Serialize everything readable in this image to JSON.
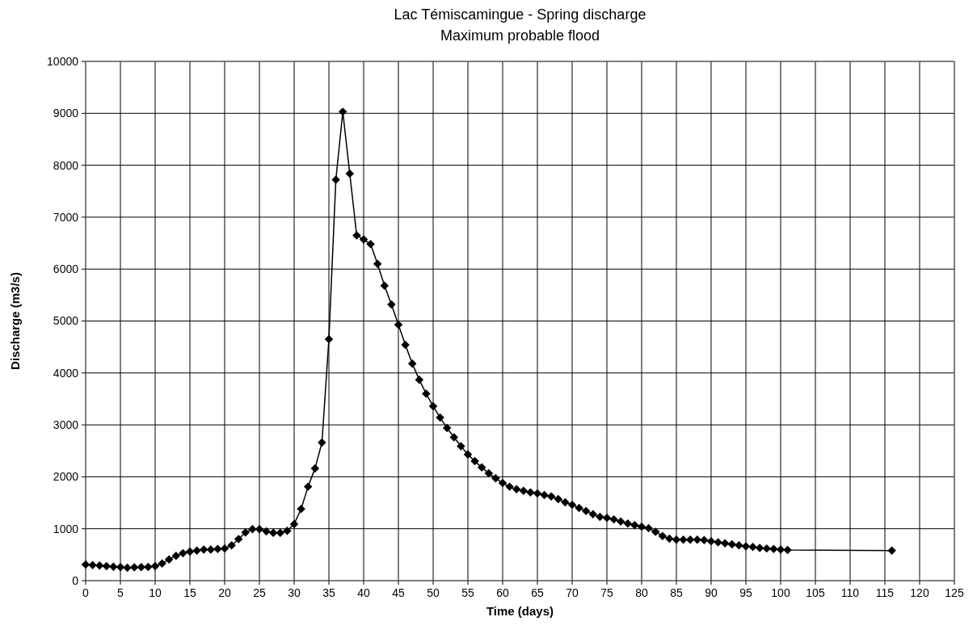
{
  "chart_data": {
    "type": "line",
    "title": "Lac Témiscamingue - Spring discharge",
    "subtitle": "Maximum probable flood",
    "xlabel": "Time (days)",
    "ylabel": "Discharge (m3/s)",
    "x": [
      0,
      1,
      2,
      3,
      4,
      5,
      6,
      7,
      8,
      9,
      10,
      11,
      12,
      13,
      14,
      15,
      16,
      17,
      18,
      19,
      20,
      21,
      22,
      23,
      24,
      25,
      26,
      27,
      28,
      29,
      30,
      31,
      32,
      33,
      34,
      35,
      36,
      37,
      38,
      39,
      40,
      41,
      42,
      43,
      44,
      45,
      46,
      47,
      48,
      49,
      50,
      51,
      52,
      53,
      54,
      55,
      56,
      57,
      58,
      59,
      60,
      61,
      62,
      63,
      64,
      65,
      66,
      67,
      68,
      69,
      70,
      71,
      72,
      73,
      74,
      75,
      76,
      77,
      78,
      79,
      80,
      81,
      82,
      83,
      84,
      85,
      86,
      87,
      88,
      89,
      90,
      91,
      92,
      93,
      94,
      95,
      96,
      97,
      98,
      99,
      100,
      101,
      116
    ],
    "series": [
      {
        "color": "#000000",
        "values": [
          310,
          300,
          290,
          280,
          270,
          260,
          250,
          255,
          260,
          265,
          280,
          330,
          410,
          480,
          530,
          560,
          580,
          600,
          600,
          610,
          620,
          680,
          800,
          930,
          990,
          990,
          950,
          920,
          920,
          960,
          1090,
          1380,
          1810,
          2160,
          2660,
          4650,
          7720,
          9030,
          7840,
          6650,
          6570,
          6480,
          6100,
          5680,
          5320,
          4930,
          4540,
          4180,
          3870,
          3600,
          3360,
          3140,
          2940,
          2760,
          2590,
          2430,
          2300,
          2180,
          2070,
          1970,
          1880,
          1810,
          1760,
          1730,
          1700,
          1680,
          1650,
          1620,
          1570,
          1510,
          1460,
          1400,
          1340,
          1280,
          1230,
          1210,
          1180,
          1140,
          1100,
          1070,
          1040,
          1010,
          940,
          860,
          810,
          790,
          790,
          790,
          790,
          780,
          760,
          740,
          720,
          700,
          680,
          660,
          650,
          630,
          620,
          610,
          600,
          590,
          580
        ]
      }
    ],
    "xlim": [
      0,
      125
    ],
    "xticks": [
      0,
      5,
      10,
      15,
      20,
      25,
      30,
      35,
      40,
      45,
      50,
      55,
      60,
      65,
      70,
      75,
      80,
      85,
      90,
      95,
      100,
      105,
      110,
      115,
      120,
      125
    ],
    "ylim": [
      0,
      10000
    ],
    "yticks": [
      0,
      1000,
      2000,
      3000,
      4000,
      5000,
      6000,
      7000,
      8000,
      9000,
      10000
    ],
    "grid": true,
    "marker": "diamond",
    "line_style": "solid"
  }
}
